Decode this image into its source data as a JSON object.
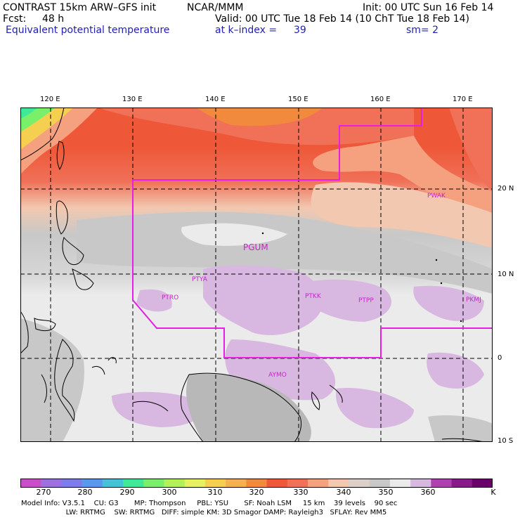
{
  "header": {
    "model": "CONTRAST 15km ARW–GFS init",
    "center": "NCAR/MMM",
    "init": "Init: 00 UTC Sun 16 Feb 14",
    "fcst_label": "Fcst:",
    "fcst_value": "48 h",
    "valid": "Valid: 00 UTC Tue 18 Feb 14 (10 ChT Tue 18 Feb 14)",
    "field": "Equivalent potential temperature",
    "level": "at k–index =",
    "level_value": "39",
    "smooth": "sm= 2"
  },
  "map": {
    "lon_labels": [
      "120 E",
      "130 E",
      "140 E",
      "150 E",
      "160 E",
      "170 E"
    ],
    "lat_labels": [
      "20 N",
      "10 N",
      "0",
      "10 S"
    ],
    "stations": [
      "PWAK",
      "PGUM",
      "PTYA",
      "PTRO",
      "PTKK",
      "PTPP",
      "PKMJ",
      "AYMO"
    ],
    "boundary_color": "#e61ee6"
  },
  "colorbar": {
    "labels": [
      "270",
      "280",
      "290",
      "300",
      "310",
      "320",
      "330",
      "340",
      "350",
      "360",
      "K"
    ],
    "colors": [
      "#c94fc9",
      "#9e6fe0",
      "#7c7ceb",
      "#5a98ee",
      "#45c2d6",
      "#40e89a",
      "#7af06a",
      "#b4f05a",
      "#e6f060",
      "#f5d050",
      "#f5b050",
      "#f28a3e",
      "#ee5838",
      "#f07058",
      "#f5a07e",
      "#f2c8b0",
      "#dcd0c8",
      "#c8c8c8",
      "#ebebeb",
      "#d8b8e0",
      "#b040b0",
      "#8a1a8a",
      "#6a006a"
    ]
  },
  "footer": {
    "line1": "Model Info: V3.5.1    CU: G3       MP: Thompson     PBL: YSU       SF: Noah LSM     15 km    39 levels    90 sec",
    "line2": "                    LW: RRTMG    SW: RRTMG   DIFF: simple KM: 3D Smagor DAMP: Rayleigh3   SFLAY: Rev MM5"
  }
}
